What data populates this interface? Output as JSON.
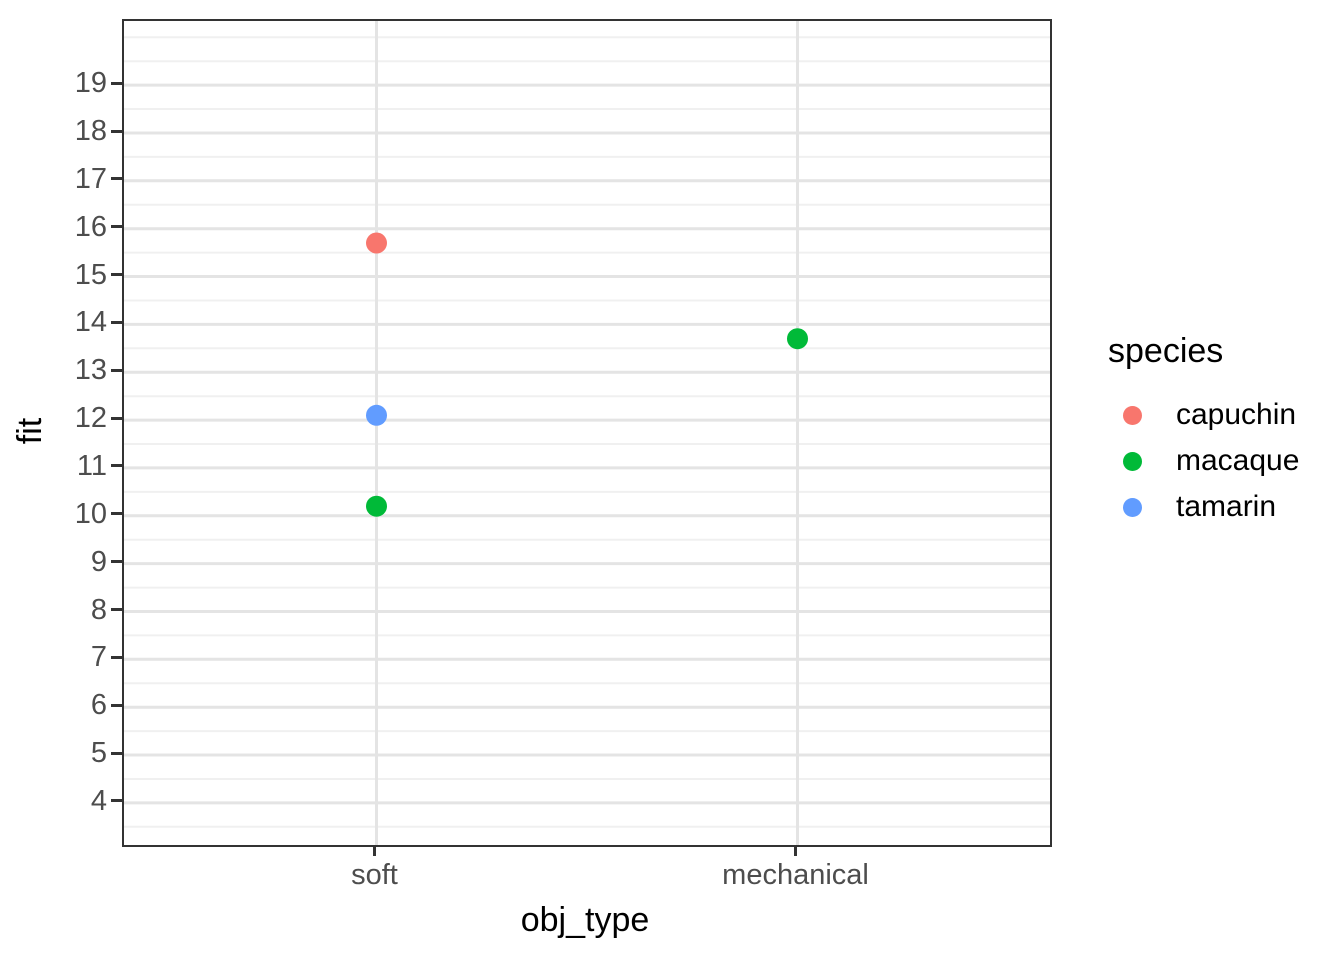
{
  "chart_data": {
    "type": "scatter",
    "title": "",
    "xlabel": "obj_type",
    "ylabel": "fit",
    "x_categories": [
      "soft",
      "mechanical"
    ],
    "y_ticks": [
      4,
      5,
      6,
      7,
      8,
      9,
      10,
      11,
      12,
      13,
      14,
      15,
      16,
      17,
      18,
      19
    ],
    "y_major_gridlines": [
      4,
      5,
      6,
      7,
      8,
      9,
      10,
      11,
      12,
      13,
      14,
      15,
      16,
      17,
      18,
      19
    ],
    "y_minor_gridlines": [
      3.5,
      4.5,
      5.5,
      6.5,
      7.5,
      8.5,
      9.5,
      10.5,
      11.5,
      12.5,
      13.5,
      14.5,
      15.5,
      16.5,
      17.5,
      18.5,
      19.5,
      20
    ],
    "ylim": [
      3.12,
      20.34
    ],
    "grid": "on",
    "legend": {
      "title": "species",
      "position": "right",
      "entries": [
        {
          "label": "capuchin",
          "color": "#F8766D"
        },
        {
          "label": "macaque",
          "color": "#00BA38"
        },
        {
          "label": "tamarin",
          "color": "#619CFF"
        }
      ]
    },
    "series": [
      {
        "name": "capuchin",
        "color": "#F8766D",
        "points": [
          {
            "x": "soft",
            "y": 15.7
          }
        ]
      },
      {
        "name": "macaque",
        "color": "#00BA38",
        "points": [
          {
            "x": "soft",
            "y": 10.2
          },
          {
            "x": "mechanical",
            "y": 13.7
          }
        ]
      },
      {
        "name": "tamarin",
        "color": "#619CFF",
        "points": [
          {
            "x": "soft",
            "y": 12.1
          }
        ]
      }
    ],
    "style": {
      "panel_border_color": "#333333",
      "grid_major_color": "#E4E4E4",
      "grid_minor_color": "#F0F0F0",
      "tick_label_color": "#4D4D4D",
      "axis_title_color": "#000000",
      "point_radius": 10.5
    }
  }
}
